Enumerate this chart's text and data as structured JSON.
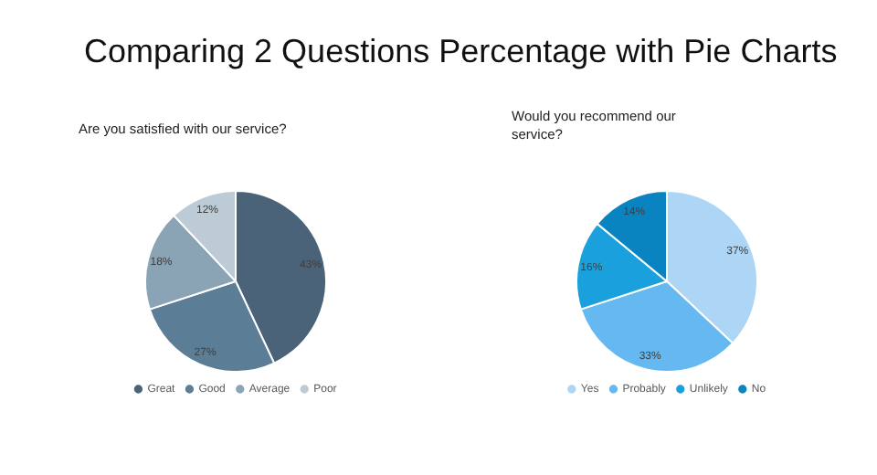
{
  "chart_data": [
    {
      "type": "pie",
      "annotations": [
        "Comparing 2 Questions Percentage with Pie Charts"
      ],
      "subtitle": "Are you satisfied with our service?",
      "categories": [
        "Great",
        "Good",
        "Average",
        "Poor"
      ],
      "values": [
        43,
        27,
        18,
        12
      ],
      "value_labels": [
        "43%",
        "27%",
        "18%",
        "12%"
      ],
      "colors": [
        "#4a6378",
        "#5b7d95",
        "#8aa3b5",
        "#bccbd5"
      ],
      "legend": "bottom"
    },
    {
      "type": "pie",
      "subtitle": "Would you recommend our service?",
      "categories": [
        "Yes",
        "Probably",
        "Unlikely",
        "No"
      ],
      "values": [
        37,
        33,
        16,
        14
      ],
      "value_labels": [
        "37%",
        "33%",
        "16%",
        "14%"
      ],
      "colors": [
        "#acd5f6",
        "#66b8f0",
        "#1aa0dc",
        "#0a84c0"
      ],
      "legend": "bottom"
    }
  ]
}
